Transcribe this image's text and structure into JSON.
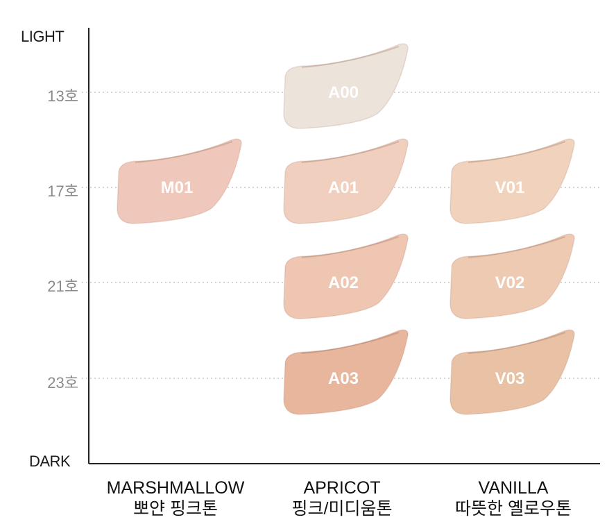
{
  "chart_data": {
    "type": "scatter",
    "y_axis": {
      "top_label": "LIGHT",
      "bottom_label": "DARK",
      "ticks": [
        "13호",
        "17호",
        "21호",
        "23호"
      ]
    },
    "categories": [
      {
        "name": "MARSHMALLOW",
        "subtitle": "뽀얀 핑크톤"
      },
      {
        "name": "APRICOT",
        "subtitle": "핑크/미디움톤"
      },
      {
        "name": "VANILLA",
        "subtitle": "따뜻한 옐로우톤"
      }
    ],
    "swatches": [
      {
        "label": "A00",
        "category": "APRICOT",
        "shade": "13호",
        "color": "#ece3da"
      },
      {
        "label": "M01",
        "category": "MARSHMALLOW",
        "shade": "17호",
        "color": "#efc8bb"
      },
      {
        "label": "A01",
        "category": "APRICOT",
        "shade": "17호",
        "color": "#f0cfbf"
      },
      {
        "label": "V01",
        "category": "VANILLA",
        "shade": "17호",
        "color": "#f1d2bd"
      },
      {
        "label": "A02",
        "category": "APRICOT",
        "shade": "21호",
        "color": "#eec6b2"
      },
      {
        "label": "V02",
        "category": "VANILLA",
        "shade": "21호",
        "color": "#efcab2"
      },
      {
        "label": "A03",
        "category": "APRICOT",
        "shade": "23호",
        "color": "#e7b69c"
      },
      {
        "label": "V03",
        "category": "VANILLA",
        "shade": "23호",
        "color": "#e9c1a4"
      }
    ],
    "grid": "dotted horizontal at ticks"
  }
}
